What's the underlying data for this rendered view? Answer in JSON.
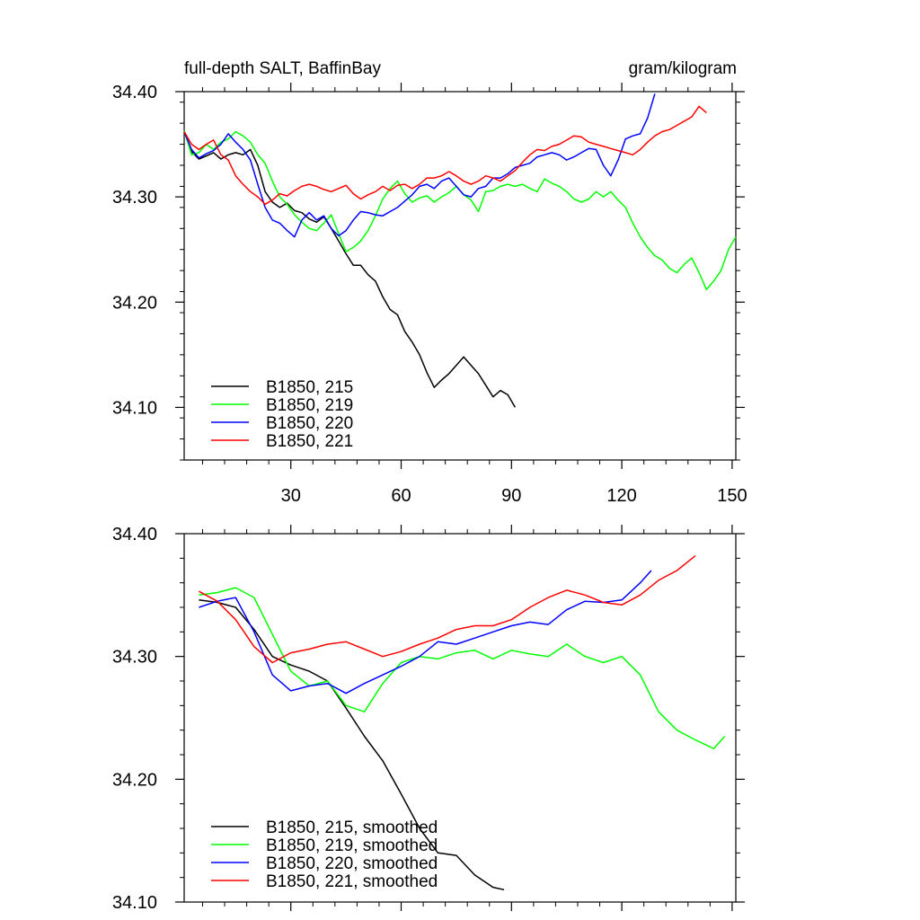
{
  "page": {
    "background": "#ffffff"
  },
  "chart_data": [
    {
      "type": "line",
      "title_left": "full-depth SALT, BaffinBay",
      "title_right": "gram/kilogram",
      "xlabel": "",
      "ylabel": "",
      "xlim": [
        1,
        151
      ],
      "ylim": [
        34.05,
        34.4
      ],
      "xticks": [
        30,
        60,
        90,
        120,
        150
      ],
      "xtick_labels": [
        "30",
        "60",
        "90",
        "120",
        "150"
      ],
      "yticks": [
        34.1,
        34.2,
        34.3,
        34.4
      ],
      "ytick_labels": [
        "34.10",
        "34.20",
        "34.30",
        "34.40"
      ],
      "grid": false,
      "legend_position": "bottom-left",
      "series": [
        {
          "name": "B1850, 215",
          "color": "#000000",
          "x": [
            1,
            3,
            5,
            7,
            9,
            11,
            13,
            15,
            17,
            19,
            21,
            23,
            25,
            27,
            29,
            31,
            33,
            35,
            37,
            39,
            41,
            43,
            45,
            47,
            49,
            51,
            53,
            55,
            57,
            59,
            61,
            63,
            65,
            67,
            69,
            71,
            73,
            75,
            77,
            79,
            81,
            83,
            85,
            87,
            89,
            91
          ],
          "y": [
            34.362,
            34.343,
            34.336,
            34.339,
            34.342,
            34.336,
            34.34,
            34.342,
            34.34,
            34.345,
            34.33,
            34.305,
            34.295,
            34.29,
            34.294,
            34.287,
            34.285,
            34.279,
            34.276,
            34.281,
            34.27,
            34.258,
            34.246,
            34.235,
            34.235,
            34.226,
            34.22,
            34.205,
            34.193,
            34.188,
            34.172,
            34.162,
            34.15,
            34.133,
            34.119,
            34.126,
            34.132,
            34.14,
            34.148,
            34.14,
            34.132,
            34.121,
            34.11,
            34.116,
            34.112,
            34.1
          ]
        },
        {
          "name": "B1850, 219",
          "color": "#00ff00",
          "x": [
            1,
            3,
            5,
            7,
            9,
            11,
            13,
            15,
            17,
            19,
            21,
            23,
            25,
            27,
            29,
            31,
            33,
            35,
            37,
            39,
            41,
            43,
            45,
            47,
            49,
            51,
            53,
            55,
            57,
            59,
            61,
            63,
            65,
            67,
            69,
            71,
            73,
            75,
            77,
            79,
            81,
            83,
            85,
            87,
            89,
            91,
            93,
            95,
            97,
            99,
            101,
            103,
            105,
            107,
            109,
            111,
            113,
            115,
            117,
            119,
            121,
            123,
            125,
            127,
            129,
            131,
            133,
            135,
            137,
            139,
            141,
            143,
            145,
            147,
            149,
            151
          ],
          "y": [
            34.363,
            34.34,
            34.342,
            34.35,
            34.345,
            34.352,
            34.355,
            34.362,
            34.358,
            34.352,
            34.34,
            34.332,
            34.315,
            34.3,
            34.293,
            34.283,
            34.276,
            34.27,
            34.268,
            34.275,
            34.283,
            34.265,
            34.248,
            34.252,
            34.258,
            34.268,
            34.282,
            34.298,
            34.308,
            34.315,
            34.303,
            34.295,
            34.299,
            34.301,
            34.295,
            34.3,
            34.304,
            34.31,
            34.302,
            34.297,
            34.286,
            34.305,
            34.306,
            34.31,
            34.312,
            34.31,
            34.312,
            34.308,
            34.305,
            34.317,
            34.313,
            34.31,
            34.305,
            34.298,
            34.295,
            34.298,
            34.305,
            34.3,
            34.305,
            34.297,
            34.29,
            34.275,
            34.262,
            34.252,
            34.244,
            34.24,
            34.232,
            34.228,
            34.236,
            34.242,
            34.228,
            34.212,
            34.22,
            34.23,
            34.25,
            34.262
          ]
        },
        {
          "name": "B1850, 220",
          "color": "#0000ff",
          "x": [
            1,
            3,
            5,
            7,
            9,
            11,
            13,
            15,
            17,
            19,
            21,
            23,
            25,
            27,
            29,
            31,
            33,
            35,
            37,
            39,
            41,
            43,
            45,
            47,
            49,
            51,
            53,
            55,
            57,
            59,
            61,
            63,
            65,
            67,
            69,
            71,
            73,
            75,
            77,
            79,
            81,
            83,
            85,
            87,
            89,
            91,
            93,
            95,
            97,
            99,
            101,
            103,
            105,
            107,
            109,
            111,
            113,
            115,
            117,
            119,
            121,
            123,
            125,
            127,
            129
          ],
          "y": [
            34.362,
            34.345,
            34.337,
            34.341,
            34.344,
            34.35,
            34.36,
            34.352,
            34.345,
            34.335,
            34.312,
            34.29,
            34.278,
            34.275,
            34.268,
            34.262,
            34.278,
            34.285,
            34.278,
            34.282,
            34.27,
            34.263,
            34.268,
            34.278,
            34.286,
            34.285,
            34.283,
            34.282,
            34.286,
            34.29,
            34.296,
            34.302,
            34.31,
            34.312,
            34.308,
            34.315,
            34.318,
            34.31,
            34.302,
            34.3,
            34.308,
            34.31,
            34.318,
            34.318,
            34.322,
            34.328,
            34.33,
            34.332,
            34.338,
            34.34,
            34.342,
            34.34,
            34.335,
            34.338,
            34.342,
            34.346,
            34.345,
            34.33,
            34.32,
            34.335,
            34.355,
            34.358,
            34.36,
            34.375,
            34.398
          ]
        },
        {
          "name": "B1850, 221",
          "color": "#ff0000",
          "x": [
            1,
            3,
            5,
            7,
            9,
            11,
            13,
            15,
            17,
            19,
            21,
            23,
            25,
            27,
            29,
            31,
            33,
            35,
            37,
            39,
            41,
            43,
            45,
            47,
            49,
            51,
            53,
            55,
            57,
            59,
            61,
            63,
            65,
            67,
            69,
            71,
            73,
            75,
            77,
            79,
            81,
            83,
            85,
            87,
            89,
            91,
            93,
            95,
            97,
            99,
            101,
            103,
            105,
            107,
            109,
            111,
            113,
            115,
            117,
            119,
            121,
            123,
            125,
            127,
            129,
            131,
            133,
            135,
            137,
            139,
            141,
            143
          ],
          "y": [
            34.362,
            34.35,
            34.345,
            34.35,
            34.354,
            34.34,
            34.335,
            34.32,
            34.312,
            34.305,
            34.3,
            34.293,
            34.297,
            34.303,
            34.301,
            34.306,
            34.31,
            34.312,
            34.31,
            34.307,
            34.305,
            34.308,
            34.311,
            34.303,
            34.298,
            34.302,
            34.305,
            34.31,
            34.306,
            34.311,
            34.312,
            34.308,
            34.312,
            34.318,
            34.318,
            34.32,
            34.324,
            34.32,
            34.315,
            34.312,
            34.315,
            34.32,
            34.318,
            34.315,
            34.32,
            34.325,
            34.333,
            34.34,
            34.345,
            34.344,
            34.348,
            34.35,
            34.354,
            34.358,
            34.357,
            34.352,
            34.35,
            34.348,
            34.346,
            34.344,
            34.342,
            34.34,
            34.345,
            34.352,
            34.358,
            34.362,
            34.364,
            34.368,
            34.372,
            34.376,
            34.386,
            34.38
          ]
        }
      ]
    },
    {
      "type": "line",
      "title_left": "",
      "title_right": "",
      "xlabel": "",
      "ylabel": "",
      "xlim": [
        1,
        151
      ],
      "ylim": [
        34.1,
        34.4
      ],
      "xticks": [
        30,
        60,
        90,
        120,
        150
      ],
      "yticks": [
        34.1,
        34.2,
        34.3,
        34.4
      ],
      "ytick_labels": [
        "34.10",
        "34.20",
        "34.30",
        "34.40"
      ],
      "grid": false,
      "legend_position": "bottom-left",
      "series": [
        {
          "name": "B1850, 215, smoothed",
          "color": "#000000",
          "x": [
            5,
            10,
            15,
            20,
            25,
            30,
            35,
            40,
            45,
            50,
            55,
            60,
            65,
            70,
            75,
            80,
            85,
            88
          ],
          "y": [
            34.346,
            34.344,
            34.34,
            34.322,
            34.3,
            34.293,
            34.288,
            34.28,
            34.258,
            34.235,
            34.215,
            34.188,
            34.16,
            34.14,
            34.138,
            34.122,
            34.112,
            34.11
          ]
        },
        {
          "name": "B1850, 219, smoothed",
          "color": "#00ff00",
          "x": [
            5,
            10,
            15,
            20,
            25,
            30,
            35,
            40,
            45,
            50,
            55,
            60,
            65,
            70,
            75,
            80,
            85,
            90,
            95,
            100,
            105,
            110,
            115,
            120,
            125,
            130,
            135,
            140,
            145,
            148
          ],
          "y": [
            34.35,
            34.352,
            34.356,
            34.348,
            34.318,
            34.288,
            34.276,
            34.28,
            34.26,
            34.255,
            34.278,
            34.295,
            34.3,
            34.298,
            34.303,
            34.305,
            34.298,
            34.305,
            34.302,
            34.3,
            34.31,
            34.3,
            34.295,
            34.3,
            34.285,
            34.255,
            34.24,
            34.232,
            34.225,
            34.235
          ]
        },
        {
          "name": "B1850, 220, smoothed",
          "color": "#0000ff",
          "x": [
            5,
            10,
            15,
            20,
            25,
            30,
            35,
            40,
            45,
            50,
            55,
            60,
            65,
            70,
            75,
            80,
            85,
            90,
            95,
            100,
            105,
            110,
            115,
            120,
            125,
            128
          ],
          "y": [
            34.34,
            34.345,
            34.348,
            34.32,
            34.285,
            34.272,
            34.276,
            34.278,
            34.27,
            34.278,
            34.285,
            34.292,
            34.3,
            34.312,
            34.31,
            34.315,
            34.32,
            34.325,
            34.328,
            34.326,
            34.338,
            34.345,
            34.344,
            34.346,
            34.36,
            34.37
          ]
        },
        {
          "name": "B1850, 221, smoothed",
          "color": "#ff0000",
          "x": [
            5,
            10,
            15,
            20,
            25,
            30,
            35,
            40,
            45,
            50,
            55,
            60,
            65,
            70,
            75,
            80,
            85,
            90,
            95,
            100,
            105,
            110,
            115,
            120,
            125,
            130,
            135,
            140
          ],
          "y": [
            34.353,
            34.345,
            34.33,
            34.308,
            34.295,
            34.303,
            34.306,
            34.31,
            34.312,
            34.306,
            34.3,
            34.304,
            34.31,
            34.315,
            34.322,
            34.325,
            34.325,
            34.33,
            34.34,
            34.348,
            34.354,
            34.35,
            34.344,
            34.342,
            34.35,
            34.362,
            34.37,
            34.382
          ]
        }
      ]
    }
  ]
}
